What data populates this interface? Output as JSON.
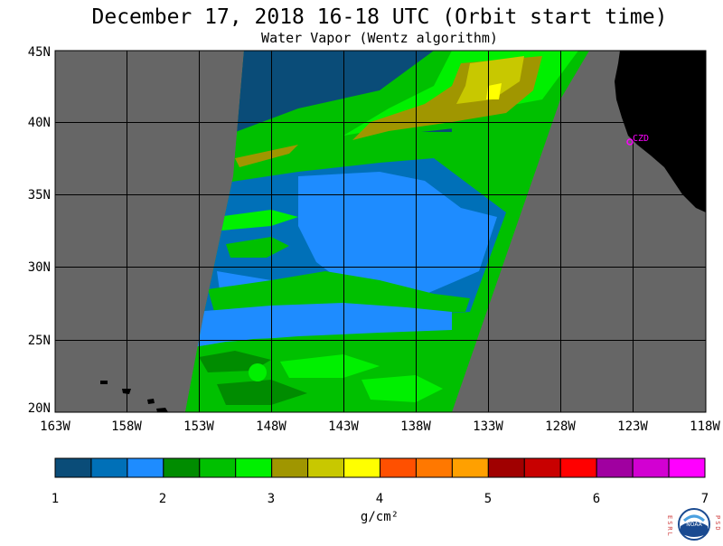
{
  "header": {
    "title": "December 17, 2018  16-18 UTC  (Orbit start time)",
    "subtitle": "Water Vapor (Wentz algorithm)"
  },
  "map": {
    "lat_labels": [
      "45N",
      "40N",
      "35N",
      "30N",
      "25N",
      "20N"
    ],
    "lon_labels": [
      "163W",
      "158W",
      "153W",
      "148W",
      "143W",
      "138W",
      "133W",
      "128W",
      "123W",
      "118W"
    ],
    "station_label": "CZD",
    "colors": {
      "no_data": "#666666",
      "land": "#000000",
      "grid": "#000000",
      "station": "#ff00ff"
    }
  },
  "colorbar": {
    "tick_labels": [
      "1",
      "2",
      "3",
      "4",
      "5",
      "6",
      "7"
    ],
    "unit_label": "g/cm²",
    "colors": [
      "#0a4c78",
      "#0070b8",
      "#1e8cff",
      "#008c00",
      "#00c000",
      "#00f000",
      "#a09600",
      "#c8c800",
      "#ffff00",
      "#ff5000",
      "#ff7800",
      "#ffa000",
      "#a00000",
      "#c80000",
      "#ff0000",
      "#a000a0",
      "#d200d2",
      "#ff00ff"
    ]
  },
  "logo": {
    "left_letters": "ESRL",
    "right_letters": "PSD",
    "center_text": "NOAA"
  }
}
